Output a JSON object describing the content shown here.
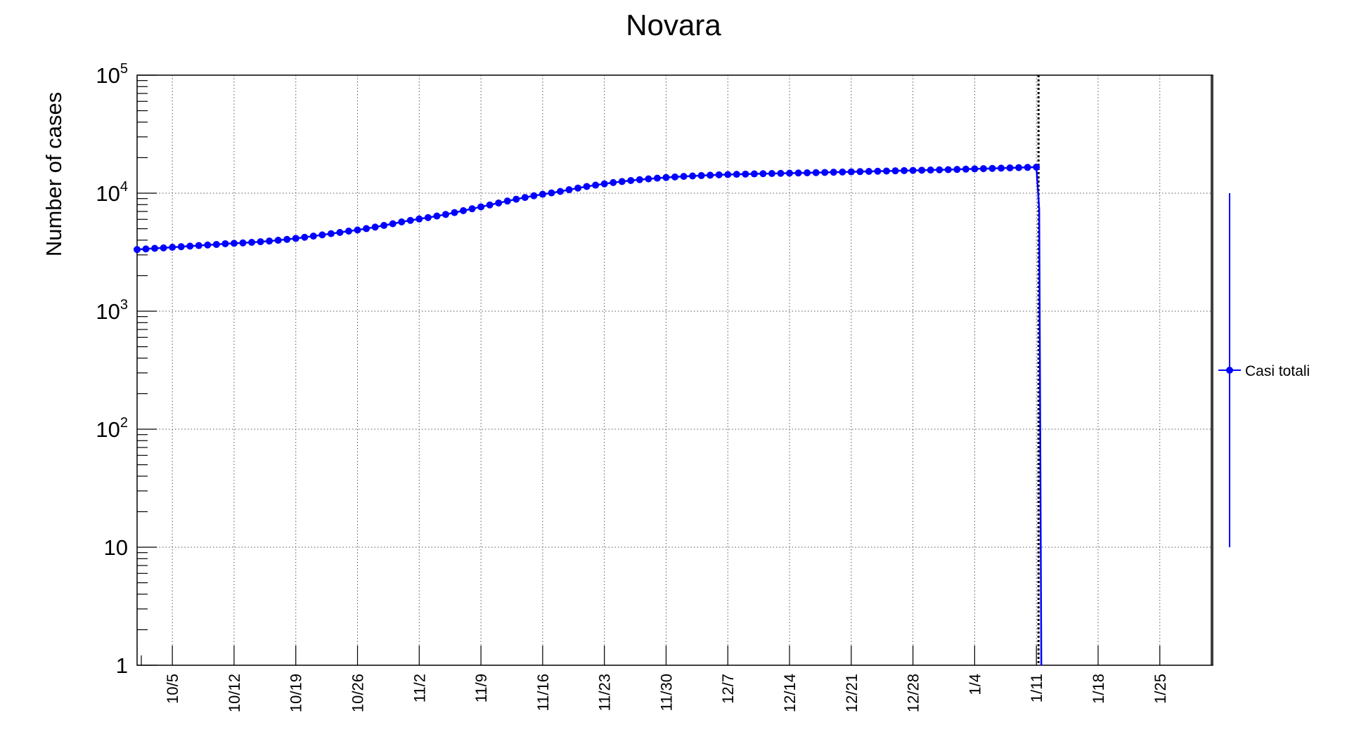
{
  "chart_data": {
    "type": "line",
    "title": "Novara",
    "xlabel": "",
    "ylabel": "Number of cases",
    "yscale": "log",
    "ylim": [
      1,
      100000
    ],
    "xlim": [
      "2020-10-01",
      "2021-01-31"
    ],
    "grid": true,
    "x_tick_labels": [
      "10/5",
      "10/12",
      "10/19",
      "10/26",
      "11/2",
      "11/9",
      "11/16",
      "11/23",
      "11/30",
      "12/7",
      "12/14",
      "12/21",
      "12/28",
      "1/4",
      "1/11",
      "1/18",
      "1/25"
    ],
    "y_tick_labels": [
      {
        "base": "1",
        "exp": ""
      },
      {
        "base": "10",
        "exp": ""
      },
      {
        "base": "10",
        "exp": "2"
      },
      {
        "base": "10",
        "exp": "3"
      },
      {
        "base": "10",
        "exp": "4"
      },
      {
        "base": "10",
        "exp": "5"
      }
    ],
    "series": [
      {
        "name": "Casi totali",
        "color": "#0000ff",
        "x": [
          "2020-10-01",
          "2020-10-02",
          "2020-10-03",
          "2020-10-04",
          "2020-10-05",
          "2020-10-06",
          "2020-10-07",
          "2020-10-08",
          "2020-10-09",
          "2020-10-10",
          "2020-10-11",
          "2020-10-12",
          "2020-10-13",
          "2020-10-14",
          "2020-10-15",
          "2020-10-16",
          "2020-10-17",
          "2020-10-18",
          "2020-10-19",
          "2020-10-20",
          "2020-10-21",
          "2020-10-22",
          "2020-10-23",
          "2020-10-24",
          "2020-10-25",
          "2020-10-26",
          "2020-10-27",
          "2020-10-28",
          "2020-10-29",
          "2020-10-30",
          "2020-10-31",
          "2020-11-01",
          "2020-11-02",
          "2020-11-03",
          "2020-11-04",
          "2020-11-05",
          "2020-11-06",
          "2020-11-07",
          "2020-11-08",
          "2020-11-09",
          "2020-11-10",
          "2020-11-11",
          "2020-11-12",
          "2020-11-13",
          "2020-11-14",
          "2020-11-15",
          "2020-11-16",
          "2020-11-17",
          "2020-11-18",
          "2020-11-19",
          "2020-11-20",
          "2020-11-21",
          "2020-11-22",
          "2020-11-23",
          "2020-11-24",
          "2020-11-25",
          "2020-11-26",
          "2020-11-27",
          "2020-11-28",
          "2020-11-29",
          "2020-11-30",
          "2020-12-01",
          "2020-12-02",
          "2020-12-03",
          "2020-12-04",
          "2020-12-05",
          "2020-12-06",
          "2020-12-07",
          "2020-12-08",
          "2020-12-09",
          "2020-12-10",
          "2020-12-11",
          "2020-12-12",
          "2020-12-13",
          "2020-12-14",
          "2020-12-15",
          "2020-12-16",
          "2020-12-17",
          "2020-12-18",
          "2020-12-19",
          "2020-12-20",
          "2020-12-21",
          "2020-12-22",
          "2020-12-23",
          "2020-12-24",
          "2020-12-25",
          "2020-12-26",
          "2020-12-27",
          "2020-12-28",
          "2020-12-29",
          "2020-12-30",
          "2020-12-31",
          "2021-01-01",
          "2021-01-02",
          "2021-01-03",
          "2021-01-04",
          "2021-01-05",
          "2021-01-06",
          "2021-01-07",
          "2021-01-08",
          "2021-01-09",
          "2021-01-10",
          "2021-01-11"
        ],
        "y": [
          3330,
          3370,
          3410,
          3440,
          3480,
          3520,
          3560,
          3600,
          3640,
          3680,
          3730,
          3760,
          3790,
          3830,
          3880,
          3930,
          3990,
          4060,
          4140,
          4230,
          4330,
          4430,
          4540,
          4650,
          4770,
          4880,
          5010,
          5160,
          5330,
          5510,
          5710,
          5880,
          6050,
          6210,
          6400,
          6610,
          6850,
          7110,
          7380,
          7660,
          7950,
          8260,
          8580,
          8890,
          9200,
          9510,
          9790,
          10050,
          10350,
          10700,
          11050,
          11400,
          11700,
          12000,
          12300,
          12550,
          12800,
          13020,
          13220,
          13400,
          13580,
          13730,
          13870,
          13990,
          14100,
          14200,
          14300,
          14380,
          14450,
          14510,
          14570,
          14630,
          14680,
          14730,
          14780,
          14830,
          14880,
          14930,
          14990,
          15050,
          15110,
          15170,
          15230,
          15290,
          15350,
          15410,
          15470,
          15530,
          15590,
          15650,
          15710,
          15770,
          15830,
          15900,
          15980,
          16060,
          16140,
          16220,
          16300,
          16380,
          16460,
          16540,
          16620
        ]
      }
    ],
    "vertical_marker": "2021-01-11",
    "legend_position": "right"
  }
}
